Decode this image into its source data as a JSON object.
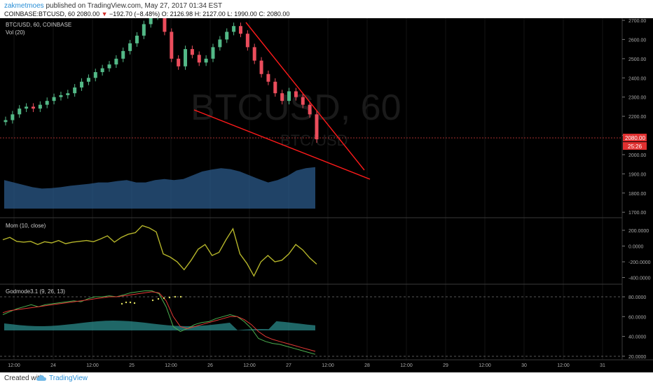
{
  "header": {
    "author": "zakmetmoes",
    "published_text": "published on TradingView.com, May 27, 2017 01:34 EST",
    "symbol": "COINBASE:BTCUSD, 60",
    "price": "2080.00",
    "change_arrow": "▼",
    "change": "−192.70 (−8.48%)",
    "open": "O: 2126.98",
    "high": "H: 2127.00",
    "low": "L: 1990.00",
    "close": "C: 2080.00"
  },
  "main_pane": {
    "legend_symbol": "BTC/USD, 60, COINBASE",
    "legend_volume": "Vol (20)",
    "watermark_symbol": "BTCUSD, 60",
    "watermark_name": "BTC/USD",
    "price_badge": "2080.00",
    "countdown_badge": "25:26",
    "y_ticks": [
      "2700.00",
      "2600.00",
      "2500.00",
      "2400.00",
      "2300.00",
      "2200.00",
      "2100.00",
      "2000.00",
      "1900.00",
      "1800.00",
      "1700.00"
    ]
  },
  "momentum_pane": {
    "legend": "Mom (10, close)",
    "y_ticks": [
      "200.0000",
      "0.0000",
      "-200.0000",
      "-400.0000"
    ]
  },
  "godmode_pane": {
    "legend": "Godmode3.1 (9, 26, 13)",
    "y_ticks": [
      "80.0000",
      "60.0000",
      "40.0000",
      "20.0000"
    ]
  },
  "time_axis": {
    "labels": [
      "12:00",
      "24",
      "12:00",
      "25",
      "12:00",
      "26",
      "12:00",
      "27",
      "12:00",
      "28",
      "12:00",
      "29",
      "12:00",
      "30",
      "12:00",
      "31"
    ]
  },
  "footer": {
    "created_with": "Created with",
    "brand": "TradingView"
  },
  "colors": {
    "background": "#000000",
    "up_candle": "#53b987",
    "down_candle": "#eb4d5c",
    "volume": "#2b5a8a",
    "trendline": "#ff1a1a",
    "momentum": "#b5b52a",
    "osc_green": "#4caf50",
    "osc_red": "#e53935",
    "osc_histogram": "#2a8a8a"
  },
  "chart_data": [
    {
      "type": "candlestick",
      "title": "BTC/USD, 60, COINBASE",
      "x_range": [
        "May 23 12:00",
        "May 27 02:00"
      ],
      "ylim": [
        1700,
        2700
      ],
      "approx_closes": [
        2180,
        2210,
        2240,
        2250,
        2240,
        2260,
        2280,
        2300,
        2310,
        2320,
        2350,
        2380,
        2400,
        2430,
        2450,
        2470,
        2500,
        2540,
        2580,
        2620,
        2680,
        2720,
        2720,
        2640,
        2500,
        2460,
        2550,
        2520,
        2480,
        2500,
        2560,
        2600,
        2640,
        2670,
        2630,
        2560,
        2490,
        2420,
        2380,
        2320,
        2280,
        2330,
        2300,
        2260,
        2210,
        2080
      ],
      "annotations": [
        {
          "type": "trendline",
          "from": {
            "x": "May 26 ~06:00",
            "y": 2680
          },
          "to": {
            "x": "May 28 00:00",
            "y": 1920
          }
        },
        {
          "type": "trendline",
          "from": {
            "x": "May 25 ~23:00",
            "y": 2230
          },
          "to": {
            "x": "May 28 00:00",
            "y": 1860
          }
        }
      ]
    },
    {
      "type": "area",
      "title": "Vol (20)",
      "series": [
        {
          "name": "Vol (20)",
          "values": [
            0.6,
            0.55,
            0.5,
            0.45,
            0.42,
            0.43,
            0.45,
            0.48,
            0.5,
            0.52,
            0.55,
            0.55,
            0.58,
            0.6,
            0.55,
            0.55,
            0.6,
            0.62,
            0.6,
            0.62,
            0.7,
            0.78,
            0.82,
            0.85,
            0.83,
            0.78,
            0.7,
            0.62,
            0.55,
            0.6,
            0.68,
            0.8,
            0.85,
            0.87
          ]
        }
      ]
    },
    {
      "type": "line",
      "title": "Mom (10, close)",
      "ylim": [
        -450,
        280
      ],
      "series": [
        {
          "name": "Mom (10, close)",
          "values": [
            80,
            110,
            60,
            50,
            60,
            20,
            55,
            40,
            70,
            30,
            50,
            60,
            70,
            55,
            90,
            130,
            50,
            110,
            150,
            170,
            260,
            230,
            180,
            -100,
            -140,
            -200,
            -300,
            -180,
            -40,
            20,
            -120,
            -80,
            80,
            220,
            -100,
            -220,
            -380,
            -200,
            -120,
            -200,
            -180,
            -100,
            20,
            -50,
            -150,
            -230
          ]
        }
      ]
    },
    {
      "type": "line",
      "title": "Godmode3.1 (9, 26, 13)",
      "ylim": [
        18,
        88
      ],
      "series": [
        {
          "name": "green line",
          "values": [
            62,
            65,
            68,
            70,
            72,
            70,
            72,
            73,
            74,
            75,
            76,
            75,
            78,
            80,
            80,
            81,
            80,
            82,
            84,
            85,
            86,
            86,
            83,
            70,
            50,
            45,
            48,
            52,
            54,
            55,
            58,
            60,
            62,
            60,
            55,
            48,
            38,
            35,
            33,
            32,
            30,
            28,
            26,
            24,
            22
          ]
        },
        {
          "name": "red line",
          "values": [
            64,
            66,
            67,
            68,
            69,
            70,
            71,
            72,
            73,
            74,
            75,
            76,
            77,
            78,
            79,
            80,
            80,
            81,
            82,
            83,
            84,
            85,
            84,
            76,
            60,
            50,
            48,
            50,
            52,
            54,
            56,
            58,
            60,
            60,
            57,
            52,
            45,
            40,
            37,
            35,
            33,
            31,
            29,
            27,
            25
          ]
        }
      ]
    }
  ]
}
